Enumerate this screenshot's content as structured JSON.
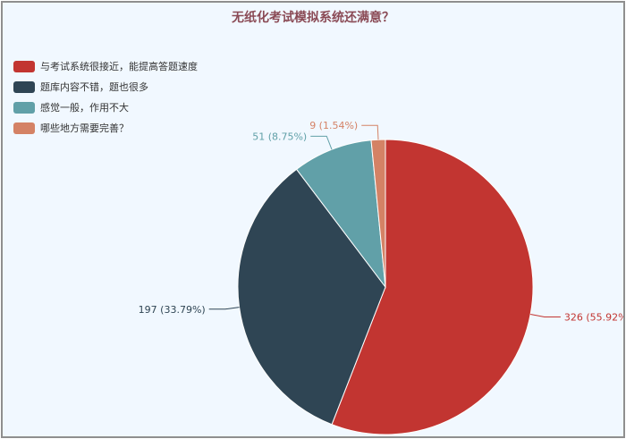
{
  "chart_data": {
    "type": "pie",
    "title": "无纸化考试模拟系统还满意？",
    "legend_position": "top-left",
    "slices": [
      {
        "name": "与考试系统很接近，能提高答题速度",
        "value": 326,
        "percent_label": "326 (55.92%)",
        "color": "#c23531"
      },
      {
        "name": "题库内容不错，题也很多",
        "value": 197,
        "percent_label": "197 (33.79%)",
        "color": "#2f4554"
      },
      {
        "name": "感觉一般，作用不大",
        "value": 51,
        "percent_label": "51 (8.75%)",
        "color": "#61a0a8"
      },
      {
        "name": "哪些地方需要完善？",
        "value": 9,
        "percent_label": "9 (1.54%)",
        "color": "#d48265"
      }
    ]
  }
}
